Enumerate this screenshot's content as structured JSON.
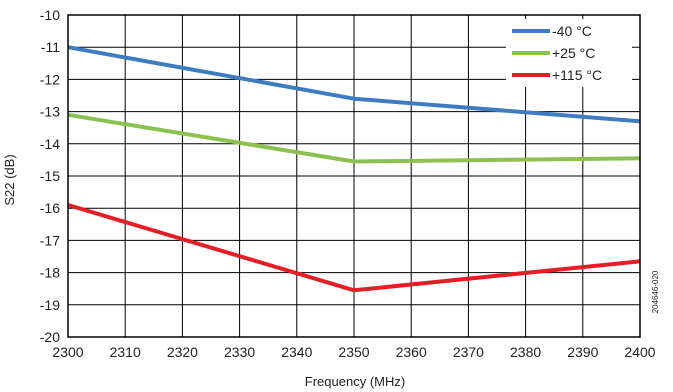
{
  "chart_data": {
    "type": "line",
    "xlabel": "Frequency (MHz)",
    "ylabel": "S22 (dB)",
    "xlim": [
      2300,
      2400
    ],
    "ylim": [
      -20,
      -10
    ],
    "x_ticks": [
      2300,
      2310,
      2320,
      2330,
      2340,
      2350,
      2360,
      2370,
      2380,
      2390,
      2400
    ],
    "y_ticks": [
      -10,
      -11,
      -12,
      -13,
      -14,
      -15,
      -16,
      -17,
      -18,
      -19,
      -20
    ],
    "grid": true,
    "legend_position": "top-right",
    "series": [
      {
        "name": "-40 °C",
        "color": "#3f7bc1",
        "x": [
          2300,
          2350,
          2375,
          2400
        ],
        "y": [
          -11.0,
          -12.6,
          -12.95,
          -13.3
        ]
      },
      {
        "name": "+25 °C",
        "color": "#8cc152",
        "x": [
          2300,
          2350,
          2400
        ],
        "y": [
          -13.1,
          -14.55,
          -14.45
        ]
      },
      {
        "name": "+115 °C",
        "color": "#e41e26",
        "x": [
          2300,
          2350,
          2375,
          2400
        ],
        "y": [
          -15.9,
          -18.55,
          -18.1,
          -17.65
        ]
      }
    ],
    "annotation": "204646-020"
  }
}
